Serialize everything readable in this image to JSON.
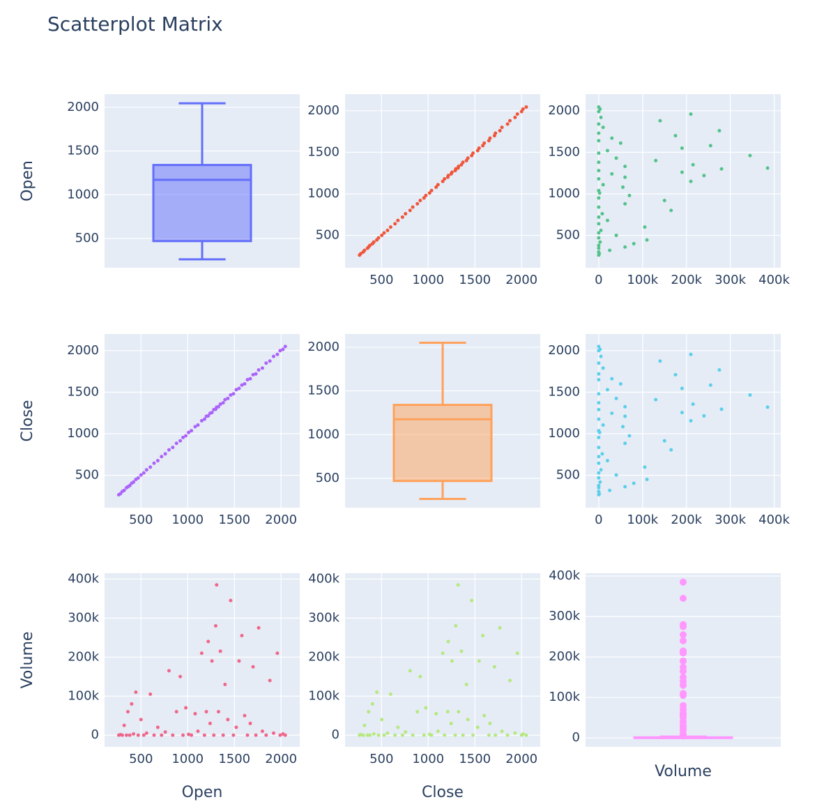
{
  "chart_data": {
    "type": "scatter_matrix",
    "title": "Scatterplot Matrix",
    "dimensions": [
      {
        "label": "Open",
        "lim": [
          110,
          2200
        ],
        "ticks": [
          500,
          1000,
          1500,
          2000
        ],
        "values": [
          262,
          280,
          300,
          320,
          345,
          360,
          380,
          400,
          420,
          445,
          470,
          500,
          530,
          560,
          600,
          640,
          680,
          720,
          760,
          800,
          840,
          880,
          920,
          950,
          980,
          1010,
          1040,
          1080,
          1110,
          1150,
          1180,
          1200,
          1220,
          1240,
          1260,
          1280,
          1300,
          1310,
          1330,
          1350,
          1380,
          1400,
          1430,
          1460,
          1490,
          1520,
          1550,
          1580,
          1610,
          1640,
          1670,
          1700,
          1730,
          1760,
          1800,
          1840,
          1880,
          1920,
          1960,
          1990,
          2020,
          2045
        ]
      },
      {
        "label": "Close",
        "lim": [
          110,
          2200
        ],
        "ticks": [
          500,
          1000,
          1500,
          2000
        ],
        "values": [
          265,
          278,
          305,
          318,
          350,
          362,
          376,
          404,
          418,
          450,
          468,
          503,
          528,
          565,
          598,
          645,
          676,
          725,
          757,
          806,
          835,
          884,
          915,
          955,
          975,
          1015,
          1036,
          1085,
          1105,
          1156,
          1175,
          1210,
          1215,
          1246,
          1255,
          1290,
          1295,
          1320,
          1325,
          1356,
          1372,
          1410,
          1425,
          1466,
          1480,
          1530,
          1545,
          1585,
          1600,
          1650,
          1662,
          1710,
          1720,
          1768,
          1790,
          1850,
          1875,
          1930,
          1955,
          2000,
          2015,
          2050
        ]
      },
      {
        "label": "Volume",
        "lim": [
          -30000,
          415000
        ],
        "ticks": [
          0,
          {
            "value": 100000,
            "label": "100k"
          },
          {
            "value": 200000,
            "label": "200k"
          },
          {
            "value": 300000,
            "label": "300k"
          },
          {
            "value": 400000,
            "label": "400k"
          }
        ],
        "values": [
          0,
          1200,
          0,
          25000,
          0,
          60000,
          0,
          80000,
          3000,
          110000,
          0,
          40000,
          0,
          5000,
          105000,
          0,
          20000,
          0,
          8000,
          165000,
          0,
          60000,
          150000,
          0,
          70000,
          2000,
          0,
          55000,
          10000,
          210000,
          0,
          60000,
          240000,
          30000,
          190000,
          0,
          280000,
          385000,
          60000,
          215000,
          0,
          130000,
          40000,
          345000,
          0,
          20000,
          190000,
          255000,
          50000,
          0,
          30000,
          175000,
          0,
          275000,
          10000,
          0,
          140000,
          5000,
          210000,
          0,
          3000,
          0
        ]
      }
    ],
    "boxes": [
      {
        "lim": [
          165,
          2150
        ],
        "lower": 262,
        "q1": 470,
        "median": 1170,
        "q3": 1340,
        "upper": 2045
      },
      {
        "lim": [
          165,
          2150
        ],
        "lower": 265,
        "q1": 470,
        "median": 1175,
        "q3": 1340,
        "upper": 2050
      },
      {
        "lim": [
          -22000,
          407000
        ],
        "lower": 0,
        "q1": 0,
        "median": 0,
        "q3": 1500,
        "upper": 3500
      }
    ],
    "colors": [
      [
        "#636efa",
        "#ef553b",
        "#53c28b"
      ],
      [
        "#ab63fa",
        "#ffa15a",
        "#5bcfea"
      ],
      [
        "#f0668a",
        "#b6e880",
        "#ff97ff"
      ]
    ]
  }
}
